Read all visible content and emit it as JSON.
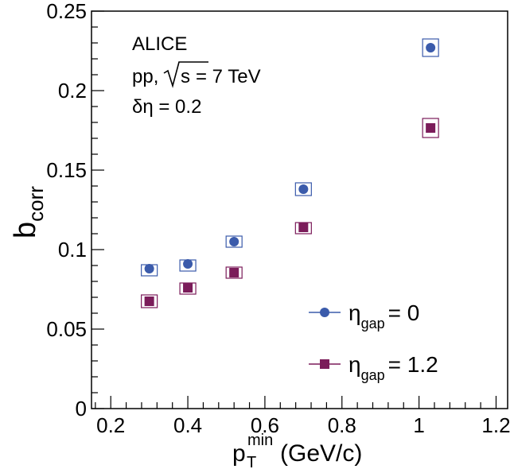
{
  "chart_data": {
    "type": "scatter",
    "xlabel": {
      "main": "p",
      "sup": "min",
      "sub": "T",
      "unit": " (GeV/c)"
    },
    "ylabel": {
      "main": "b",
      "sub": "corr"
    },
    "xlim": [
      0.15,
      1.23
    ],
    "ylim": [
      0,
      0.25
    ],
    "x_ticks": [
      0.2,
      0.4,
      0.6,
      0.8,
      1.0,
      1.2
    ],
    "x_tick_labels": [
      "0.2",
      "0.4",
      "0.6",
      "0.8",
      "1",
      "1.2"
    ],
    "y_ticks": [
      0,
      0.05,
      0.1,
      0.15,
      0.2,
      0.25
    ],
    "y_tick_labels": [
      "0",
      "0.05",
      "0.1",
      "0.15",
      "0.2",
      "0.25"
    ],
    "grid": false,
    "annotations": {
      "experiment": "ALICE",
      "system_prefix": "pp,",
      "system_sqrt": "s",
      "system_suffix": "= 7 TeV",
      "deta": "δη = 0.2"
    },
    "legend_position": "bottom-right",
    "series": [
      {
        "legend_main": "η",
        "legend_sub": "gap",
        "legend_value": "= 0",
        "marker": "circle",
        "color": "#3b5bab",
        "syst_color": "#3b5bab",
        "points": [
          {
            "x": 0.3,
            "y": 0.088,
            "syst": 0.0025
          },
          {
            "x": 0.4,
            "y": 0.091,
            "syst": 0.0025
          },
          {
            "x": 0.52,
            "y": 0.105,
            "syst": 0.0035
          },
          {
            "x": 0.7,
            "y": 0.138,
            "syst": 0.004
          },
          {
            "x": 1.03,
            "y": 0.227,
            "syst": 0.0055
          }
        ]
      },
      {
        "legend_main": "η",
        "legend_sub": "gap",
        "legend_value": "= 1.2",
        "marker": "square",
        "color": "#7b1c5a",
        "syst_color": "#7b1c5a",
        "points": [
          {
            "x": 0.3,
            "y": 0.0675,
            "syst": 0.004
          },
          {
            "x": 0.4,
            "y": 0.076,
            "syst": 0.003
          },
          {
            "x": 0.52,
            "y": 0.0855,
            "syst": 0.0035
          },
          {
            "x": 0.7,
            "y": 0.114,
            "syst": 0.003
          },
          {
            "x": 1.03,
            "y": 0.1765,
            "syst": 0.006
          }
        ]
      }
    ]
  }
}
